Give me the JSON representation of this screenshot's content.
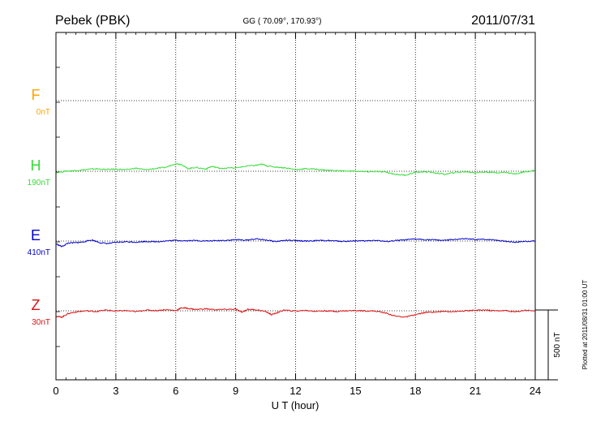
{
  "header": {
    "station": "Pebek (PBK)",
    "coords": "GG ( 70.09°, 170.93°)",
    "date": "2011/07/31"
  },
  "plotted_note": "Plotted at 2011/08/31 01:00 UT",
  "chart_data": {
    "type": "line",
    "xlabel": "U T (hour)",
    "xlim": [
      0,
      24
    ],
    "xticks": [
      0,
      3,
      6,
      9,
      12,
      15,
      18,
      21,
      24
    ],
    "xtick_labels": [
      "0",
      "3",
      "6",
      "9",
      "12",
      "15",
      "18",
      "21",
      "24"
    ],
    "scale_bar_label": "500 nT",
    "scale_bar_nT": 500,
    "grid": true,
    "series": [
      {
        "name": "F",
        "offset_label": "0nT",
        "color": "#ffa500",
        "points": []
      },
      {
        "name": "H",
        "offset_label": "190nT",
        "color": "#33dd33",
        "points": [
          [
            0,
            -10
          ],
          [
            0.5,
            0
          ],
          [
            1,
            5
          ],
          [
            1.5,
            12
          ],
          [
            2,
            18
          ],
          [
            2.5,
            12
          ],
          [
            3,
            15
          ],
          [
            3.5,
            10
          ],
          [
            4,
            22
          ],
          [
            4.5,
            10
          ],
          [
            5,
            20
          ],
          [
            5.5,
            28
          ],
          [
            6,
            55
          ],
          [
            6.3,
            48
          ],
          [
            6.6,
            18
          ],
          [
            7,
            28
          ],
          [
            7.5,
            15
          ],
          [
            7.8,
            35
          ],
          [
            8.2,
            22
          ],
          [
            9,
            24
          ],
          [
            9.5,
            36
          ],
          [
            10,
            42
          ],
          [
            10.3,
            50
          ],
          [
            10.6,
            38
          ],
          [
            11,
            30
          ],
          [
            11.5,
            24
          ],
          [
            12,
            12
          ],
          [
            12.5,
            18
          ],
          [
            13,
            15
          ],
          [
            13.5,
            8
          ],
          [
            14,
            4
          ],
          [
            15,
            0
          ],
          [
            15.5,
            -4
          ],
          [
            16,
            -2
          ],
          [
            16.5,
            -6
          ],
          [
            17,
            -22
          ],
          [
            17.5,
            -28
          ],
          [
            18,
            -8
          ],
          [
            18.5,
            -3
          ],
          [
            19,
            -12
          ],
          [
            19.5,
            -22
          ],
          [
            20,
            -8
          ],
          [
            20.5,
            -4
          ],
          [
            21,
            -10
          ],
          [
            21.5,
            -5
          ],
          [
            22,
            -10
          ],
          [
            22.5,
            -8
          ],
          [
            23,
            -20
          ],
          [
            23.5,
            -2
          ],
          [
            24,
            5
          ]
        ]
      },
      {
        "name": "E",
        "offset_label": "410nT",
        "color": "#0000cc",
        "points": [
          [
            0,
            -20
          ],
          [
            0.3,
            -40
          ],
          [
            0.6,
            -15
          ],
          [
            1,
            -12
          ],
          [
            1.3,
            -8
          ],
          [
            1.8,
            8
          ],
          [
            2.2,
            -12
          ],
          [
            2.6,
            -18
          ],
          [
            3,
            -10
          ],
          [
            3.5,
            -5
          ],
          [
            4,
            -8
          ],
          [
            4.5,
            -3
          ],
          [
            5,
            -5
          ],
          [
            5.5,
            0
          ],
          [
            6,
            5
          ],
          [
            6.5,
            2
          ],
          [
            7,
            4
          ],
          [
            7.5,
            0
          ],
          [
            8,
            2
          ],
          [
            8.5,
            5
          ],
          [
            9,
            10
          ],
          [
            9.5,
            6
          ],
          [
            10,
            15
          ],
          [
            10.5,
            8
          ],
          [
            11,
            -4
          ],
          [
            11.5,
            5
          ],
          [
            12,
            2
          ],
          [
            12.5,
            0
          ],
          [
            13,
            2
          ],
          [
            13.5,
            4
          ],
          [
            14,
            0
          ],
          [
            14.5,
            -2
          ],
          [
            15,
            2
          ],
          [
            15.5,
            0
          ],
          [
            16,
            6
          ],
          [
            16.5,
            -4
          ],
          [
            17,
            3
          ],
          [
            17.5,
            8
          ],
          [
            18,
            14
          ],
          [
            18.5,
            10
          ],
          [
            19,
            8
          ],
          [
            19.5,
            5
          ],
          [
            20,
            12
          ],
          [
            20.5,
            16
          ],
          [
            21,
            10
          ],
          [
            21.5,
            12
          ],
          [
            22,
            8
          ],
          [
            22.5,
            -2
          ],
          [
            23,
            -8
          ],
          [
            23.5,
            -2
          ],
          [
            24,
            0
          ]
        ]
      },
      {
        "name": "Z",
        "offset_label": "30nT",
        "color": "#dd1111",
        "points": [
          [
            0,
            -40
          ],
          [
            0.3,
            -45
          ],
          [
            0.6,
            -20
          ],
          [
            1,
            -8
          ],
          [
            1.5,
            0
          ],
          [
            2,
            -5
          ],
          [
            2.5,
            5
          ],
          [
            3,
            -2
          ],
          [
            3.5,
            2
          ],
          [
            4,
            -6
          ],
          [
            4.5,
            5
          ],
          [
            5,
            2
          ],
          [
            5.5,
            8
          ],
          [
            6,
            2
          ],
          [
            6.3,
            22
          ],
          [
            6.6,
            18
          ],
          [
            7,
            10
          ],
          [
            7.5,
            14
          ],
          [
            8,
            8
          ],
          [
            8.5,
            10
          ],
          [
            9,
            12
          ],
          [
            9.3,
            -10
          ],
          [
            9.6,
            10
          ],
          [
            10,
            8
          ],
          [
            10.5,
            -5
          ],
          [
            10.8,
            -28
          ],
          [
            11.1,
            -12
          ],
          [
            11.4,
            5
          ],
          [
            12,
            -2
          ],
          [
            12.5,
            3
          ],
          [
            13,
            -3
          ],
          [
            13.5,
            0
          ],
          [
            14,
            -4
          ],
          [
            14.5,
            0
          ],
          [
            15,
            2
          ],
          [
            15.5,
            0
          ],
          [
            16,
            -2
          ],
          [
            16.5,
            -15
          ],
          [
            17,
            -38
          ],
          [
            17.5,
            -45
          ],
          [
            18,
            -28
          ],
          [
            18.5,
            -12
          ],
          [
            19,
            -8
          ],
          [
            19.5,
            -4
          ],
          [
            20,
            -5
          ],
          [
            20.5,
            0
          ],
          [
            21,
            3
          ],
          [
            21.5,
            6
          ],
          [
            22,
            0
          ],
          [
            22.5,
            2
          ],
          [
            23,
            -8
          ],
          [
            23.5,
            5
          ],
          [
            24,
            0
          ]
        ]
      }
    ]
  }
}
